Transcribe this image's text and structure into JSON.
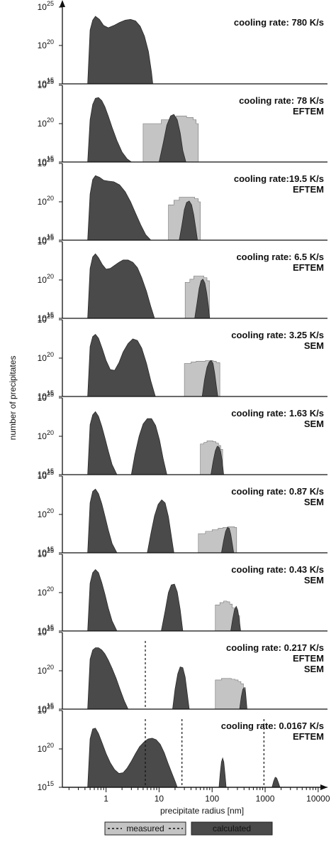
{
  "chart_data": {
    "type": "area",
    "xlabel": "precipitate radius [nm]",
    "ylabel": "number of precipitates",
    "x_scale": "log",
    "xlim": [
      0.15,
      15000
    ],
    "x_ticks": [
      1,
      10,
      100,
      1000,
      10000
    ],
    "x_tick_labels": [
      "1",
      "10",
      "100",
      "1000",
      "10000"
    ],
    "y_scale": "log",
    "ylim": [
      1000000000000000.0,
      1e+25
    ],
    "y_ticks": [
      1000000000000000.0,
      1e+20,
      1e+25
    ],
    "y_tick_mantissa": "10",
    "y_tick_exponents": [
      "15",
      "20",
      "25"
    ],
    "legend": {
      "position": "bottom-center",
      "measured_label": "measured",
      "calculated_label": "calculated"
    },
    "colors": {
      "calculated": "#4a4a4a",
      "measured": "#c4c4c4",
      "axis": "#111111"
    },
    "panels": [
      {
        "title_lines": [
          "cooling rate: 780 K/s"
        ],
        "calculated": {
          "x": [
            0.45,
            0.5,
            0.56,
            0.63,
            0.75,
            0.9,
            1.1,
            1.4,
            1.8,
            2.3,
            2.9,
            3.6,
            4.4,
            5.3,
            6.3,
            7.2,
            7.6
          ],
          "y": [
            15,
            22,
            23.3,
            23.8,
            23.4,
            22.6,
            22.3,
            22.6,
            23.0,
            23.3,
            23.4,
            23.2,
            22.5,
            21.2,
            19.2,
            16.5,
            15
          ]
        }
      },
      {
        "title_lines": [
          "cooling rate: 78 K/s",
          "EFTEM"
        ],
        "measured": {
          "x": [
            5,
            8,
            11,
            14,
            17,
            21,
            25,
            29,
            33,
            38,
            44,
            50,
            55
          ],
          "y": [
            20.0,
            20.0,
            20.5,
            20.5,
            20.8,
            21.0,
            21.0,
            21.0,
            20.8,
            20.8,
            20.5,
            20.0,
            15
          ]
        },
        "calculated": {
          "x": [
            0.45,
            0.5,
            0.56,
            0.63,
            0.72,
            0.83,
            0.95,
            1.1,
            1.3,
            1.6,
            2.0,
            2.5,
            3.0
          ],
          "y": [
            15,
            20.5,
            22.5,
            23.3,
            23.4,
            23.0,
            22.2,
            21.0,
            19.5,
            17.8,
            16.3,
            15.4,
            15
          ]
        },
        "calculated_2": {
          "x": [
            10,
            12,
            14,
            16.5,
            19,
            22,
            25,
            28,
            32
          ],
          "y": [
            15,
            17.5,
            19.8,
            21.0,
            21.2,
            20.5,
            18.8,
            16.5,
            15
          ]
        }
      },
      {
        "title_lines": [
          "cooling rate:19.5 K/s",
          "EFTEM"
        ],
        "measured": {
          "x": [
            15,
            19,
            24,
            29,
            34,
            40,
            47,
            55,
            60
          ],
          "y": [
            19.6,
            20.2,
            20.6,
            20.6,
            20.6,
            20.6,
            20.4,
            20.0,
            15
          ]
        },
        "calculated": {
          "x": [
            0.45,
            0.5,
            0.56,
            0.63,
            0.75,
            0.9,
            1.1,
            1.4,
            1.8,
            2.3,
            2.9,
            3.6,
            4.5,
            5.6,
            7
          ],
          "y": [
            15,
            21,
            22.9,
            23.4,
            23.2,
            22.8,
            22.7,
            22.6,
            22.2,
            21.3,
            20.0,
            18.5,
            17.0,
            15.7,
            15
          ]
        },
        "calculated_2": {
          "x": [
            24,
            27,
            30,
            33,
            37,
            41,
            45,
            49,
            53
          ],
          "y": [
            15,
            17,
            19.0,
            19.9,
            20.1,
            19.6,
            18.3,
            16.6,
            15
          ]
        }
      },
      {
        "title_lines": [
          "cooling rate: 6.5 K/s",
          "EFTEM"
        ],
        "measured": {
          "x": [
            31,
            38,
            45,
            53,
            61,
            70,
            80,
            89
          ],
          "y": [
            19.7,
            20.1,
            20.5,
            20.5,
            20.5,
            20.3,
            19.9,
            15
          ]
        },
        "calculated": {
          "x": [
            0.45,
            0.5,
            0.56,
            0.63,
            0.72,
            0.85,
            1.0,
            1.2,
            1.45,
            1.75,
            2.1,
            2.6,
            3.2,
            3.9,
            4.7,
            5.8,
            7,
            8.2
          ],
          "y": [
            15,
            21.5,
            23.0,
            23.4,
            22.9,
            22.0,
            21.4,
            21.5,
            21.9,
            22.3,
            22.6,
            22.6,
            22.3,
            21.6,
            20.3,
            18.5,
            16.5,
            15
          ]
        },
        "calculated_2": {
          "x": [
            47,
            52,
            57,
            62,
            67,
            73,
            79,
            85,
            90
          ],
          "y": [
            15,
            17.0,
            18.9,
            19.9,
            20.1,
            19.6,
            18.3,
            16.7,
            15
          ]
        }
      },
      {
        "title_lines": [
          "cooling rate: 3.25 K/s",
          "SEM"
        ],
        "measured": {
          "x": [
            30,
            40,
            50,
            62,
            75,
            90,
            105,
            120,
            140
          ],
          "y": [
            19.3,
            19.5,
            19.6,
            19.6,
            19.7,
            19.7,
            19.6,
            19.4,
            15
          ]
        },
        "calculated": {
          "x": [
            0.45,
            0.5,
            0.56,
            0.63,
            0.72,
            0.85,
            1.0,
            1.2,
            1.45,
            1.75,
            2.1,
            2.6,
            3.2,
            3.9,
            4.7,
            5.8,
            7,
            8.5
          ],
          "y": [
            15,
            21.5,
            22.8,
            23.1,
            22.6,
            21.2,
            19.7,
            18.5,
            18.4,
            19.4,
            20.8,
            21.9,
            22.5,
            22.3,
            21.3,
            19.3,
            17.0,
            15
          ]
        },
        "calculated_2": {
          "x": [
            65,
            72,
            80,
            88,
            96,
            104,
            112,
            120,
            128
          ],
          "y": [
            15,
            17.2,
            18.8,
            19.5,
            19.7,
            19.3,
            18.0,
            16.4,
            15
          ]
        }
      },
      {
        "title_lines": [
          "cooling rate: 1.63 K/s",
          "SEM"
        ],
        "measured": {
          "x": [
            60,
            70,
            80,
            92,
            104,
            118,
            132,
            145,
            158
          ],
          "y": [
            19.0,
            19.2,
            19.4,
            19.4,
            19.3,
            19.1,
            18.8,
            18.3,
            15
          ]
        },
        "calculated": {
          "x": [
            0.45,
            0.5,
            0.56,
            0.63,
            0.72,
            0.83,
            0.95,
            1.1,
            1.3,
            1.6
          ],
          "y": [
            15,
            21.5,
            22.8,
            23.2,
            22.6,
            21.3,
            19.8,
            18.1,
            16.3,
            15
          ]
        },
        "calculated_2": {
          "x": [
            3.0,
            3.5,
            4.2,
            5.0,
            6.0,
            7.2,
            8.6,
            10.2,
            12.0,
            14.0
          ],
          "y": [
            15,
            17.6,
            20.0,
            21.6,
            22.3,
            22.3,
            21.4,
            19.5,
            17.0,
            15
          ]
        },
        "calculated_3": {
          "x": [
            95,
            105,
            115,
            125,
            135,
            145,
            155,
            165
          ],
          "y": [
            15,
            16.8,
            18.1,
            18.7,
            18.6,
            18.0,
            16.8,
            15
          ]
        }
      },
      {
        "title_lines": [
          "cooling rate: 0.87 K/s",
          "SEM"
        ],
        "measured": {
          "x": [
            55,
            75,
            100,
            130,
            160,
            195,
            230,
            265,
            290
          ],
          "y": [
            17.5,
            17.8,
            18.0,
            18.2,
            18.3,
            18.4,
            18.4,
            18.3,
            15
          ]
        },
        "calculated": {
          "x": [
            0.45,
            0.5,
            0.56,
            0.63,
            0.72,
            0.83,
            0.95,
            1.1,
            1.3,
            1.6
          ],
          "y": [
            15,
            21.5,
            23.0,
            23.3,
            22.7,
            21.4,
            19.8,
            18.0,
            16.2,
            15
          ]
        },
        "calculated_2": {
          "x": [
            6.0,
            7.0,
            8.2,
            9.6,
            11.2,
            13.0,
            15.0,
            17.0,
            19.0
          ],
          "y": [
            15,
            17.5,
            19.8,
            21.3,
            21.9,
            21.5,
            19.7,
            17.2,
            15
          ]
        },
        "calculated_3": {
          "x": [
            150,
            165,
            180,
            195,
            210,
            225,
            240,
            255
          ],
          "y": [
            15,
            16.6,
            17.8,
            18.3,
            18.2,
            17.4,
            16.2,
            15
          ]
        }
      },
      {
        "title_lines": [
          "cooling rate: 0.43 K/s",
          "SEM"
        ],
        "measured": {
          "x": [
            115,
            140,
            165,
            190,
            215,
            240,
            270,
            300,
            330
          ],
          "y": [
            18.4,
            18.7,
            18.9,
            18.8,
            18.5,
            18.0,
            17.5,
            17.0,
            15
          ]
        },
        "calculated": {
          "x": [
            0.45,
            0.5,
            0.56,
            0.63,
            0.72,
            0.83,
            0.95,
            1.1,
            1.3,
            1.6
          ],
          "y": [
            15,
            21.2,
            22.6,
            23.0,
            22.6,
            21.3,
            19.8,
            18.0,
            16.3,
            15
          ]
        },
        "calculated_2": {
          "x": [
            11,
            13,
            15,
            17,
            19.5,
            22,
            25,
            28
          ],
          "y": [
            15,
            17.6,
            20.0,
            21.0,
            21.1,
            20.1,
            17.8,
            15
          ]
        },
        "calculated_3": {
          "x": [
            225,
            245,
            265,
            285,
            305,
            325,
            345
          ],
          "y": [
            15,
            16.6,
            17.8,
            18.2,
            17.7,
            16.5,
            15
          ]
        }
      },
      {
        "title_lines": [
          "cooling rate: 0.217 K/s",
          "EFTEM",
          "SEM"
        ],
        "measured": {
          "x": [
            115,
            150,
            190,
            230,
            270,
            310,
            350,
            390,
            430
          ],
          "y": [
            18.8,
            19.0,
            19.0,
            18.9,
            18.8,
            18.6,
            18.3,
            17.8,
            15
          ]
        },
        "measured_line_x": [
          5.5
        ],
        "calculated": {
          "x": [
            0.45,
            0.5,
            0.56,
            0.63,
            0.72,
            0.83,
            0.95,
            1.1,
            1.3,
            1.55,
            1.85,
            2.2,
            2.6
          ],
          "y": [
            15,
            21.5,
            22.7,
            23.0,
            23.0,
            22.7,
            22.2,
            21.4,
            20.3,
            19.0,
            17.5,
            16.1,
            15
          ]
        },
        "calculated_2": {
          "x": [
            18,
            20,
            22.5,
            25,
            28,
            31,
            34,
            37
          ],
          "y": [
            15,
            17.6,
            19.6,
            20.5,
            20.4,
            19.2,
            17.0,
            15
          ]
        },
        "calculated_3": {
          "x": [
            330,
            355,
            380,
            405,
            430,
            455
          ],
          "y": [
            15,
            16.6,
            17.6,
            17.8,
            17.0,
            15
          ]
        }
      },
      {
        "title_lines": [
          "cooling rate: 0.0167 K/s",
          "EFTEM"
        ],
        "measured_line_x": [
          5.5,
          27,
          950
        ],
        "calculated": {
          "x": [
            0.45,
            0.5,
            0.56,
            0.63,
            0.72,
            0.85,
            1.0,
            1.2,
            1.45,
            1.75,
            2.1,
            2.5,
            3.0,
            3.6,
            4.3,
            5.2,
            6.2,
            7.4,
            8.8,
            10.5,
            12.5,
            14.8,
            17.5,
            20.5,
            22
          ],
          "y": [
            15,
            21.3,
            22.6,
            22.7,
            22.0,
            20.7,
            19.4,
            18.2,
            17.3,
            16.8,
            16.9,
            17.5,
            18.4,
            19.4,
            20.3,
            20.9,
            21.3,
            21.4,
            21.2,
            20.6,
            19.5,
            18.1,
            16.8,
            15.6,
            15
          ]
        },
        "calculated_2": {
          "x": [
            135,
            142,
            150,
            158,
            166,
            175,
            184
          ],
          "y": [
            15,
            16.8,
            18.3,
            18.8,
            18.3,
            16.7,
            15
          ]
        },
        "calculated_3": {
          "x": [
            1350,
            1450,
            1550,
            1650,
            1780,
            1900
          ],
          "y": [
            15,
            15.8,
            16.3,
            16.2,
            15.6,
            15
          ]
        }
      }
    ]
  }
}
